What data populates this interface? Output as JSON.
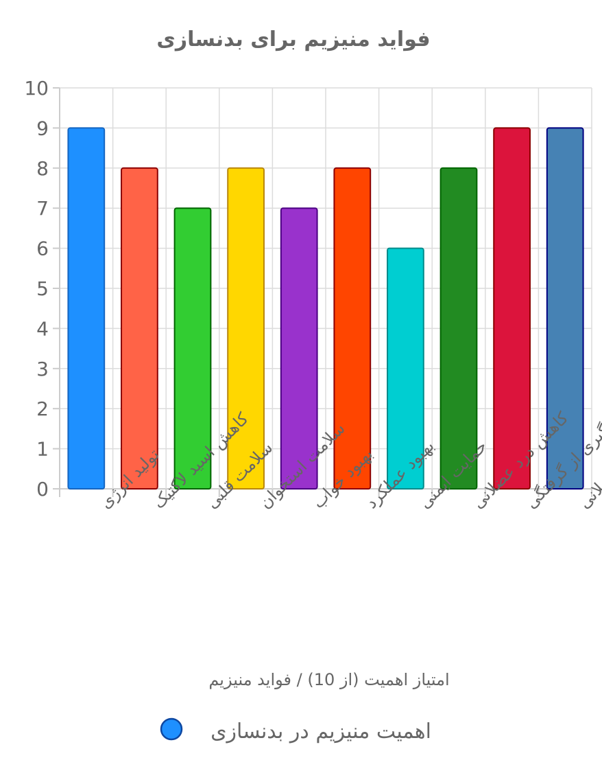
{
  "chart_data": {
    "type": "bar",
    "title": "فواید منیزیم برای بدنسازی",
    "xlabel": "امتیاز اهمیت (از 10) / فواید منیزیم",
    "ylabel": "",
    "ylim": [
      0,
      10
    ],
    "yticks": [
      "0",
      "1",
      "2",
      "3",
      "4",
      "5",
      "6",
      "7",
      "8",
      "9",
      "10"
    ],
    "grid": true,
    "legend_position": "bottom",
    "categories": [
      "تولید انرژی",
      "کاهش اسید لاکتیک",
      "سلامت قلبی",
      "سلامت استخوان",
      "بهبود خواب",
      "بهبود عملکرد",
      "حمایت ایمنی",
      "کاهش درد عضلانی",
      "جلوگیری از گرفتگی",
      "بازسازی عضلانی"
    ],
    "series": [
      {
        "name": "اهمیت منیزیم در بدنسازی",
        "values": [
          9,
          8,
          7,
          8,
          7,
          8,
          6,
          8,
          9,
          9
        ]
      }
    ],
    "bar_colors": [
      "#1E90FF",
      "#FF6347",
      "#32CD32",
      "#FFD700",
      "#9932CC",
      "#FF4500",
      "#00CED1",
      "#228B22",
      "#DC143C",
      "#4682B4"
    ],
    "bar_border_colors": [
      "#1565C0",
      "#8B0000",
      "#006400",
      "#B8860B",
      "#4B0082",
      "#8B0000",
      "#008B8B",
      "#006400",
      "#8B0000",
      "#000080"
    ],
    "legend_color": "#1E90FF",
    "legend_border_color": "#0D47A1"
  }
}
